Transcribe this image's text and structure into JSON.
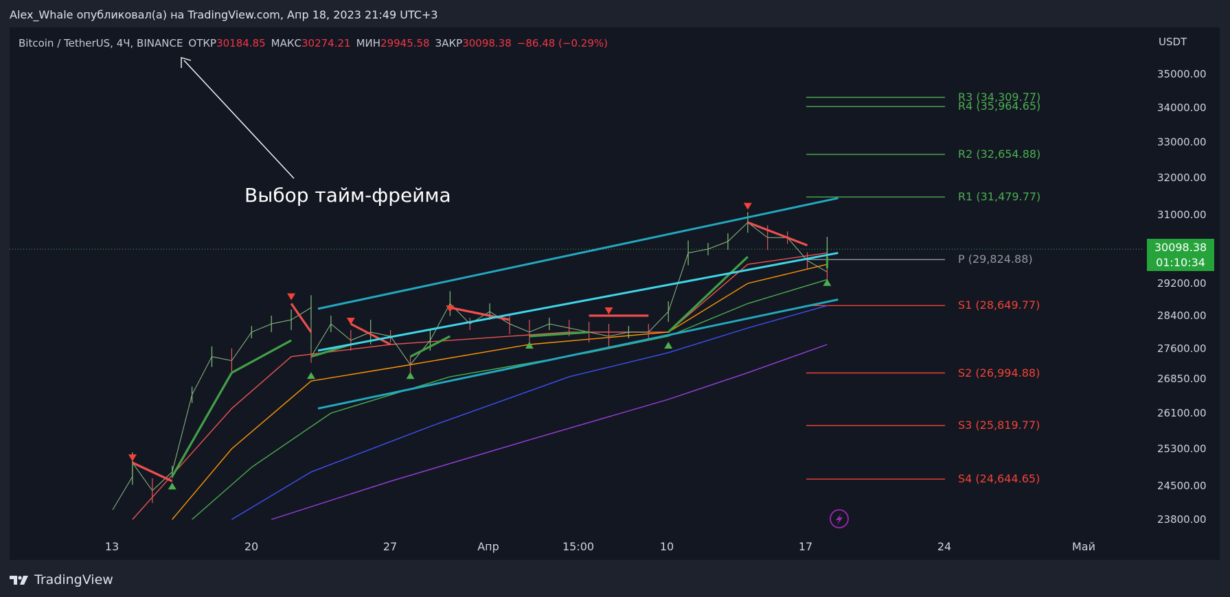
{
  "header": {
    "publish_line": "Alex_Whale опубликовал(а) на TradingView.com, Апр 18, 2023 21:49 UTC+3"
  },
  "legend": {
    "symbol": "Bitcoin / TetherUS, 4Ч, BINANCE",
    "open_label": "ОТКР",
    "open_value": "30184.85",
    "high_label": "МАКС",
    "high_value": "30274.21",
    "low_label": "МИН",
    "low_value": "29945.58",
    "close_label": "ЗАКР",
    "close_value": "30098.38",
    "change": "−86.48 (−0.29%)"
  },
  "annotation": {
    "text": "Выбор тайм-фрейма"
  },
  "price_badge": {
    "price": "30098.38",
    "countdown": "01:10:34"
  },
  "brand": {
    "name": "TradingView"
  },
  "colors": {
    "background": "#131722",
    "frame": "#1e222d",
    "text": "#d1d4dc",
    "up": "#26a69a",
    "down": "#ef5350",
    "pivot_green": "#4caf50",
    "pivot_red": "#f44336",
    "channel": "#00bcd4",
    "badge": "#26a33b"
  },
  "chart_data": {
    "type": "candlestick",
    "symbol": "Bitcoin / TetherUS",
    "timeframe": "4Ч",
    "exchange": "BINANCE",
    "currency": "USDT",
    "y_axis_ticks": [
      "35000.00",
      "34000.00",
      "33000.00",
      "32000.00",
      "31000.00",
      "29200.00",
      "28400.00",
      "27600.00",
      "26850.00",
      "26100.00",
      "25300.00",
      "24500.00",
      "23800.00"
    ],
    "x_axis_ticks": [
      "13",
      "20",
      "27",
      "Апр",
      "15:00",
      "10",
      "17",
      "24",
      "Май"
    ],
    "last_price": 30098.38,
    "pivot_levels": [
      {
        "label": "R4 (35,964.65)",
        "value": 35964.65
      },
      {
        "label": "R3 (34,309.77)",
        "value": 34309.77
      },
      {
        "label": "R2 (32,654.88)",
        "value": 32654.88
      },
      {
        "label": "R1 (31,479.77)",
        "value": 31479.77
      },
      {
        "label": "P (29,824.88)",
        "value": 29824.88
      },
      {
        "label": "S1 (28,649.77)",
        "value": 28649.77
      },
      {
        "label": "S2 (26,994.88)",
        "value": 26994.88
      },
      {
        "label": "S3 (25,819.77)",
        "value": 25819.77
      },
      {
        "label": "S4 (24,644.65)",
        "value": 24644.65
      }
    ],
    "price_path": [
      {
        "t": "Mar 13",
        "p": 24000
      },
      {
        "t": "Mar 14",
        "p": 24700
      },
      {
        "t": "Mar 14",
        "p": 25000
      },
      {
        "t": "Mar 15",
        "p": 24400
      },
      {
        "t": "Mar 16",
        "p": 24800
      },
      {
        "t": "Mar 17",
        "p": 26500
      },
      {
        "t": "Mar 18",
        "p": 27400
      },
      {
        "t": "Mar 19",
        "p": 27300
      },
      {
        "t": "Mar 20",
        "p": 28000
      },
      {
        "t": "Mar 21",
        "p": 28200
      },
      {
        "t": "Mar 22",
        "p": 28300
      },
      {
        "t": "Mar 23",
        "p": 28600
      },
      {
        "t": "Mar 23",
        "p": 27400
      },
      {
        "t": "Mar 24",
        "p": 28200
      },
      {
        "t": "Mar 25",
        "p": 27800
      },
      {
        "t": "Mar 26",
        "p": 28000
      },
      {
        "t": "Mar 27",
        "p": 27900
      },
      {
        "t": "Mar 28",
        "p": 27200
      },
      {
        "t": "Mar 29",
        "p": 27800
      },
      {
        "t": "Mar 30",
        "p": 28700
      },
      {
        "t": "Mar 31",
        "p": 28200
      },
      {
        "t": "Apr 01",
        "p": 28500
      },
      {
        "t": "Apr 02",
        "p": 28200
      },
      {
        "t": "Apr 03",
        "p": 28000
      },
      {
        "t": "Apr 04",
        "p": 28200
      },
      {
        "t": "Apr 05",
        "p": 28100
      },
      {
        "t": "Apr 06",
        "p": 28000
      },
      {
        "t": "Apr 07",
        "p": 27900
      },
      {
        "t": "Apr 08",
        "p": 28000
      },
      {
        "t": "Apr 09",
        "p": 28000
      },
      {
        "t": "Apr 10",
        "p": 28500
      },
      {
        "t": "Apr 11",
        "p": 30000
      },
      {
        "t": "Apr 12",
        "p": 30100
      },
      {
        "t": "Apr 13",
        "p": 30300
      },
      {
        "t": "Apr 14",
        "p": 30800
      },
      {
        "t": "Apr 15",
        "p": 30400
      },
      {
        "t": "Apr 16",
        "p": 30400
      },
      {
        "t": "Apr 17",
        "p": 29800
      },
      {
        "t": "Apr 18",
        "p": 29500
      },
      {
        "t": "Apr 18",
        "p": 30098
      }
    ],
    "channel": {
      "upper": [
        {
          "t": "Mar 23",
          "p": 28570
        },
        {
          "t": "Apr 18",
          "p": 31450
        }
      ],
      "middle": [
        {
          "t": "Mar 23",
          "p": 27550
        },
        {
          "t": "Apr 18",
          "p": 30000
        }
      ],
      "lower": [
        {
          "t": "Mar 23",
          "p": 26200
        },
        {
          "t": "Apr 18",
          "p": 28800
        }
      ]
    },
    "supertrend": [
      {
        "t": "Mar 14",
        "p": 25000,
        "dir": "down"
      },
      {
        "t": "Mar 16",
        "p": 24600,
        "dir": "down"
      },
      {
        "t": "Mar 16",
        "p": 24700,
        "dir": "up"
      },
      {
        "t": "Mar 19",
        "p": 27000,
        "dir": "up"
      },
      {
        "t": "Mar 22",
        "p": 27800,
        "dir": "up"
      },
      {
        "t": "Mar 22",
        "p": 28700,
        "dir": "down"
      },
      {
        "t": "Mar 23",
        "p": 28000,
        "dir": "down"
      },
      {
        "t": "Mar 23",
        "p": 27400,
        "dir": "up"
      },
      {
        "t": "Mar 25",
        "p": 27700,
        "dir": "up"
      },
      {
        "t": "Mar 25",
        "p": 28200,
        "dir": "down"
      },
      {
        "t": "Mar 27",
        "p": 27700,
        "dir": "down"
      },
      {
        "t": "Mar 28",
        "p": 27400,
        "dir": "up"
      },
      {
        "t": "Mar 30",
        "p": 27900,
        "dir": "up"
      },
      {
        "t": "Mar 30",
        "p": 28600,
        "dir": "down"
      },
      {
        "t": "Apr 02",
        "p": 28300,
        "dir": "down"
      },
      {
        "t": "Apr 03",
        "p": 27900,
        "dir": "up"
      },
      {
        "t": "Apr 06",
        "p": 28000,
        "dir": "up"
      },
      {
        "t": "Apr 06",
        "p": 28400,
        "dir": "down"
      },
      {
        "t": "Apr 09",
        "p": 28400,
        "dir": "down"
      },
      {
        "t": "Apr 10",
        "p": 28000,
        "dir": "up"
      },
      {
        "t": "Apr 14",
        "p": 29900,
        "dir": "up"
      },
      {
        "t": "Apr 14",
        "p": 30800,
        "dir": "down"
      },
      {
        "t": "Apr 17",
        "p": 30200,
        "dir": "down"
      },
      {
        "t": "Apr 18",
        "p": 29600,
        "dir": "up"
      },
      {
        "t": "Apr 18",
        "p": 29900,
        "dir": "up"
      }
    ],
    "moving_averages": [
      {
        "color": "#ef5350",
        "points": [
          {
            "t": "Mar 14",
            "p": 23800
          },
          {
            "t": "Mar 19",
            "p": 26200
          },
          {
            "t": "Mar 22",
            "p": 27400
          },
          {
            "t": "Mar 27",
            "p": 27700
          },
          {
            "t": "Apr 05",
            "p": 28000
          },
          {
            "t": "Apr 10",
            "p": 28000
          },
          {
            "t": "Apr 14",
            "p": 29700
          },
          {
            "t": "Apr 18",
            "p": 30000
          }
        ]
      },
      {
        "color": "#ff9800",
        "points": [
          {
            "t": "Mar 16",
            "p": 23800
          },
          {
            "t": "Mar 19",
            "p": 25300
          },
          {
            "t": "Mar 23",
            "p": 26800
          },
          {
            "t": "Mar 28",
            "p": 27200
          },
          {
            "t": "Apr 03",
            "p": 27700
          },
          {
            "t": "Apr 10",
            "p": 28000
          },
          {
            "t": "Apr 14",
            "p": 29200
          },
          {
            "t": "Apr 18",
            "p": 29700
          }
        ]
      },
      {
        "color": "#4caf50",
        "points": [
          {
            "t": "Mar 17",
            "p": 23800
          },
          {
            "t": "Mar 20",
            "p": 24900
          },
          {
            "t": "Mar 24",
            "p": 26100
          },
          {
            "t": "Mar 30",
            "p": 26900
          },
          {
            "t": "Apr 06",
            "p": 27500
          },
          {
            "t": "Apr 10",
            "p": 27900
          },
          {
            "t": "Apr 14",
            "p": 28700
          },
          {
            "t": "Apr 18",
            "p": 29300
          }
        ]
      },
      {
        "color": "#3f51f5",
        "points": [
          {
            "t": "Mar 19",
            "p": 23800
          },
          {
            "t": "Mar 23",
            "p": 24800
          },
          {
            "t": "Mar 29",
            "p": 25800
          },
          {
            "t": "Apr 05",
            "p": 26900
          },
          {
            "t": "Apr 10",
            "p": 27500
          },
          {
            "t": "Apr 14",
            "p": 28100
          },
          {
            "t": "Apr 18",
            "p": 28650
          }
        ]
      },
      {
        "color": "#9c3fe0",
        "points": [
          {
            "t": "Mar 21",
            "p": 23800
          },
          {
            "t": "Mar 27",
            "p": 24600
          },
          {
            "t": "Apr 03",
            "p": 25500
          },
          {
            "t": "Apr 10",
            "p": 26400
          },
          {
            "t": "Apr 14",
            "p": 27000
          },
          {
            "t": "Apr 18",
            "p": 27700
          }
        ]
      }
    ],
    "signal_markers": [
      {
        "t": "Mar 14",
        "p": 25000,
        "dir": "sell"
      },
      {
        "t": "Mar 22",
        "p": 28750,
        "dir": "sell"
      },
      {
        "t": "Mar 25",
        "p": 28150,
        "dir": "sell"
      },
      {
        "t": "Mar 30",
        "p": 28450,
        "dir": "sell"
      },
      {
        "t": "Apr 07",
        "p": 28400,
        "dir": "sell"
      },
      {
        "t": "Apr 14",
        "p": 31100,
        "dir": "sell"
      },
      {
        "t": "Mar 16",
        "p": 24600,
        "dir": "buy"
      },
      {
        "t": "Mar 23",
        "p": 27050,
        "dir": "buy"
      },
      {
        "t": "Mar 28",
        "p": 27050,
        "dir": "buy"
      },
      {
        "t": "Apr 03",
        "p": 27800,
        "dir": "buy"
      },
      {
        "t": "Apr 10",
        "p": 27800,
        "dir": "buy"
      },
      {
        "t": "Apr 18",
        "p": 29350,
        "dir": "buy"
      }
    ]
  }
}
